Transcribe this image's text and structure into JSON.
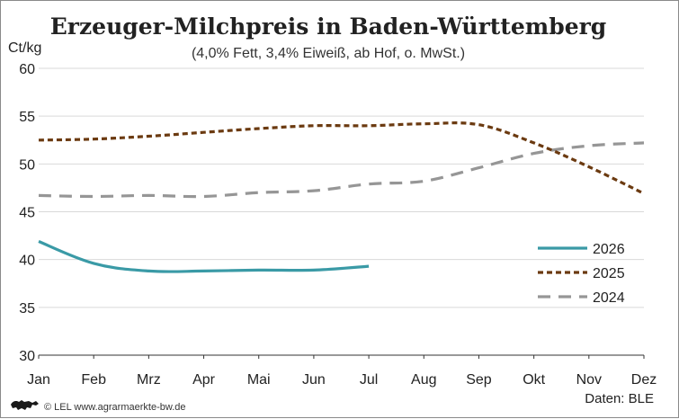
{
  "chart_data": {
    "type": "line",
    "title": "Erzeuger-Milchpreis in Baden-Württemberg",
    "subtitle": "(4,0% Fett, 3,4% Eiweiß, ab Hof, o. MwSt.)",
    "ylabel": "Ct/kg",
    "ylim": [
      30,
      60
    ],
    "yticks": [
      "30",
      "35",
      "40",
      "45",
      "50",
      "55",
      "60"
    ],
    "categories": [
      "Jan",
      "Feb",
      "Mrz",
      "Apr",
      "Mai",
      "Jun",
      "Jul",
      "Aug",
      "Sep",
      "Okt",
      "Nov",
      "Dez"
    ],
    "grid": "horizontal",
    "legend_position": "right",
    "series": [
      {
        "name": "2026",
        "color": "#3a9aa6",
        "style": "solid",
        "values": [
          41.9,
          39.6,
          38.8,
          38.8,
          38.9,
          38.9,
          39.3,
          null,
          null,
          null,
          null,
          null
        ]
      },
      {
        "name": "2025",
        "color": "#6b3a10",
        "style": "dotted",
        "values": [
          52.5,
          52.6,
          52.9,
          53.3,
          53.7,
          54.0,
          54.0,
          54.2,
          54.1,
          52.2,
          49.7,
          46.9
        ]
      },
      {
        "name": "2024",
        "color": "#969696",
        "style": "dashed",
        "values": [
          46.7,
          46.6,
          46.7,
          46.6,
          47.0,
          47.2,
          47.9,
          48.2,
          49.6,
          51.1,
          51.9,
          52.2
        ]
      }
    ]
  },
  "footer": {
    "logo_icon": "lion-coat-of-arms-icon",
    "credit": "© LEL www.agrarmaerkte-bw.de",
    "source": "Daten: BLE"
  }
}
